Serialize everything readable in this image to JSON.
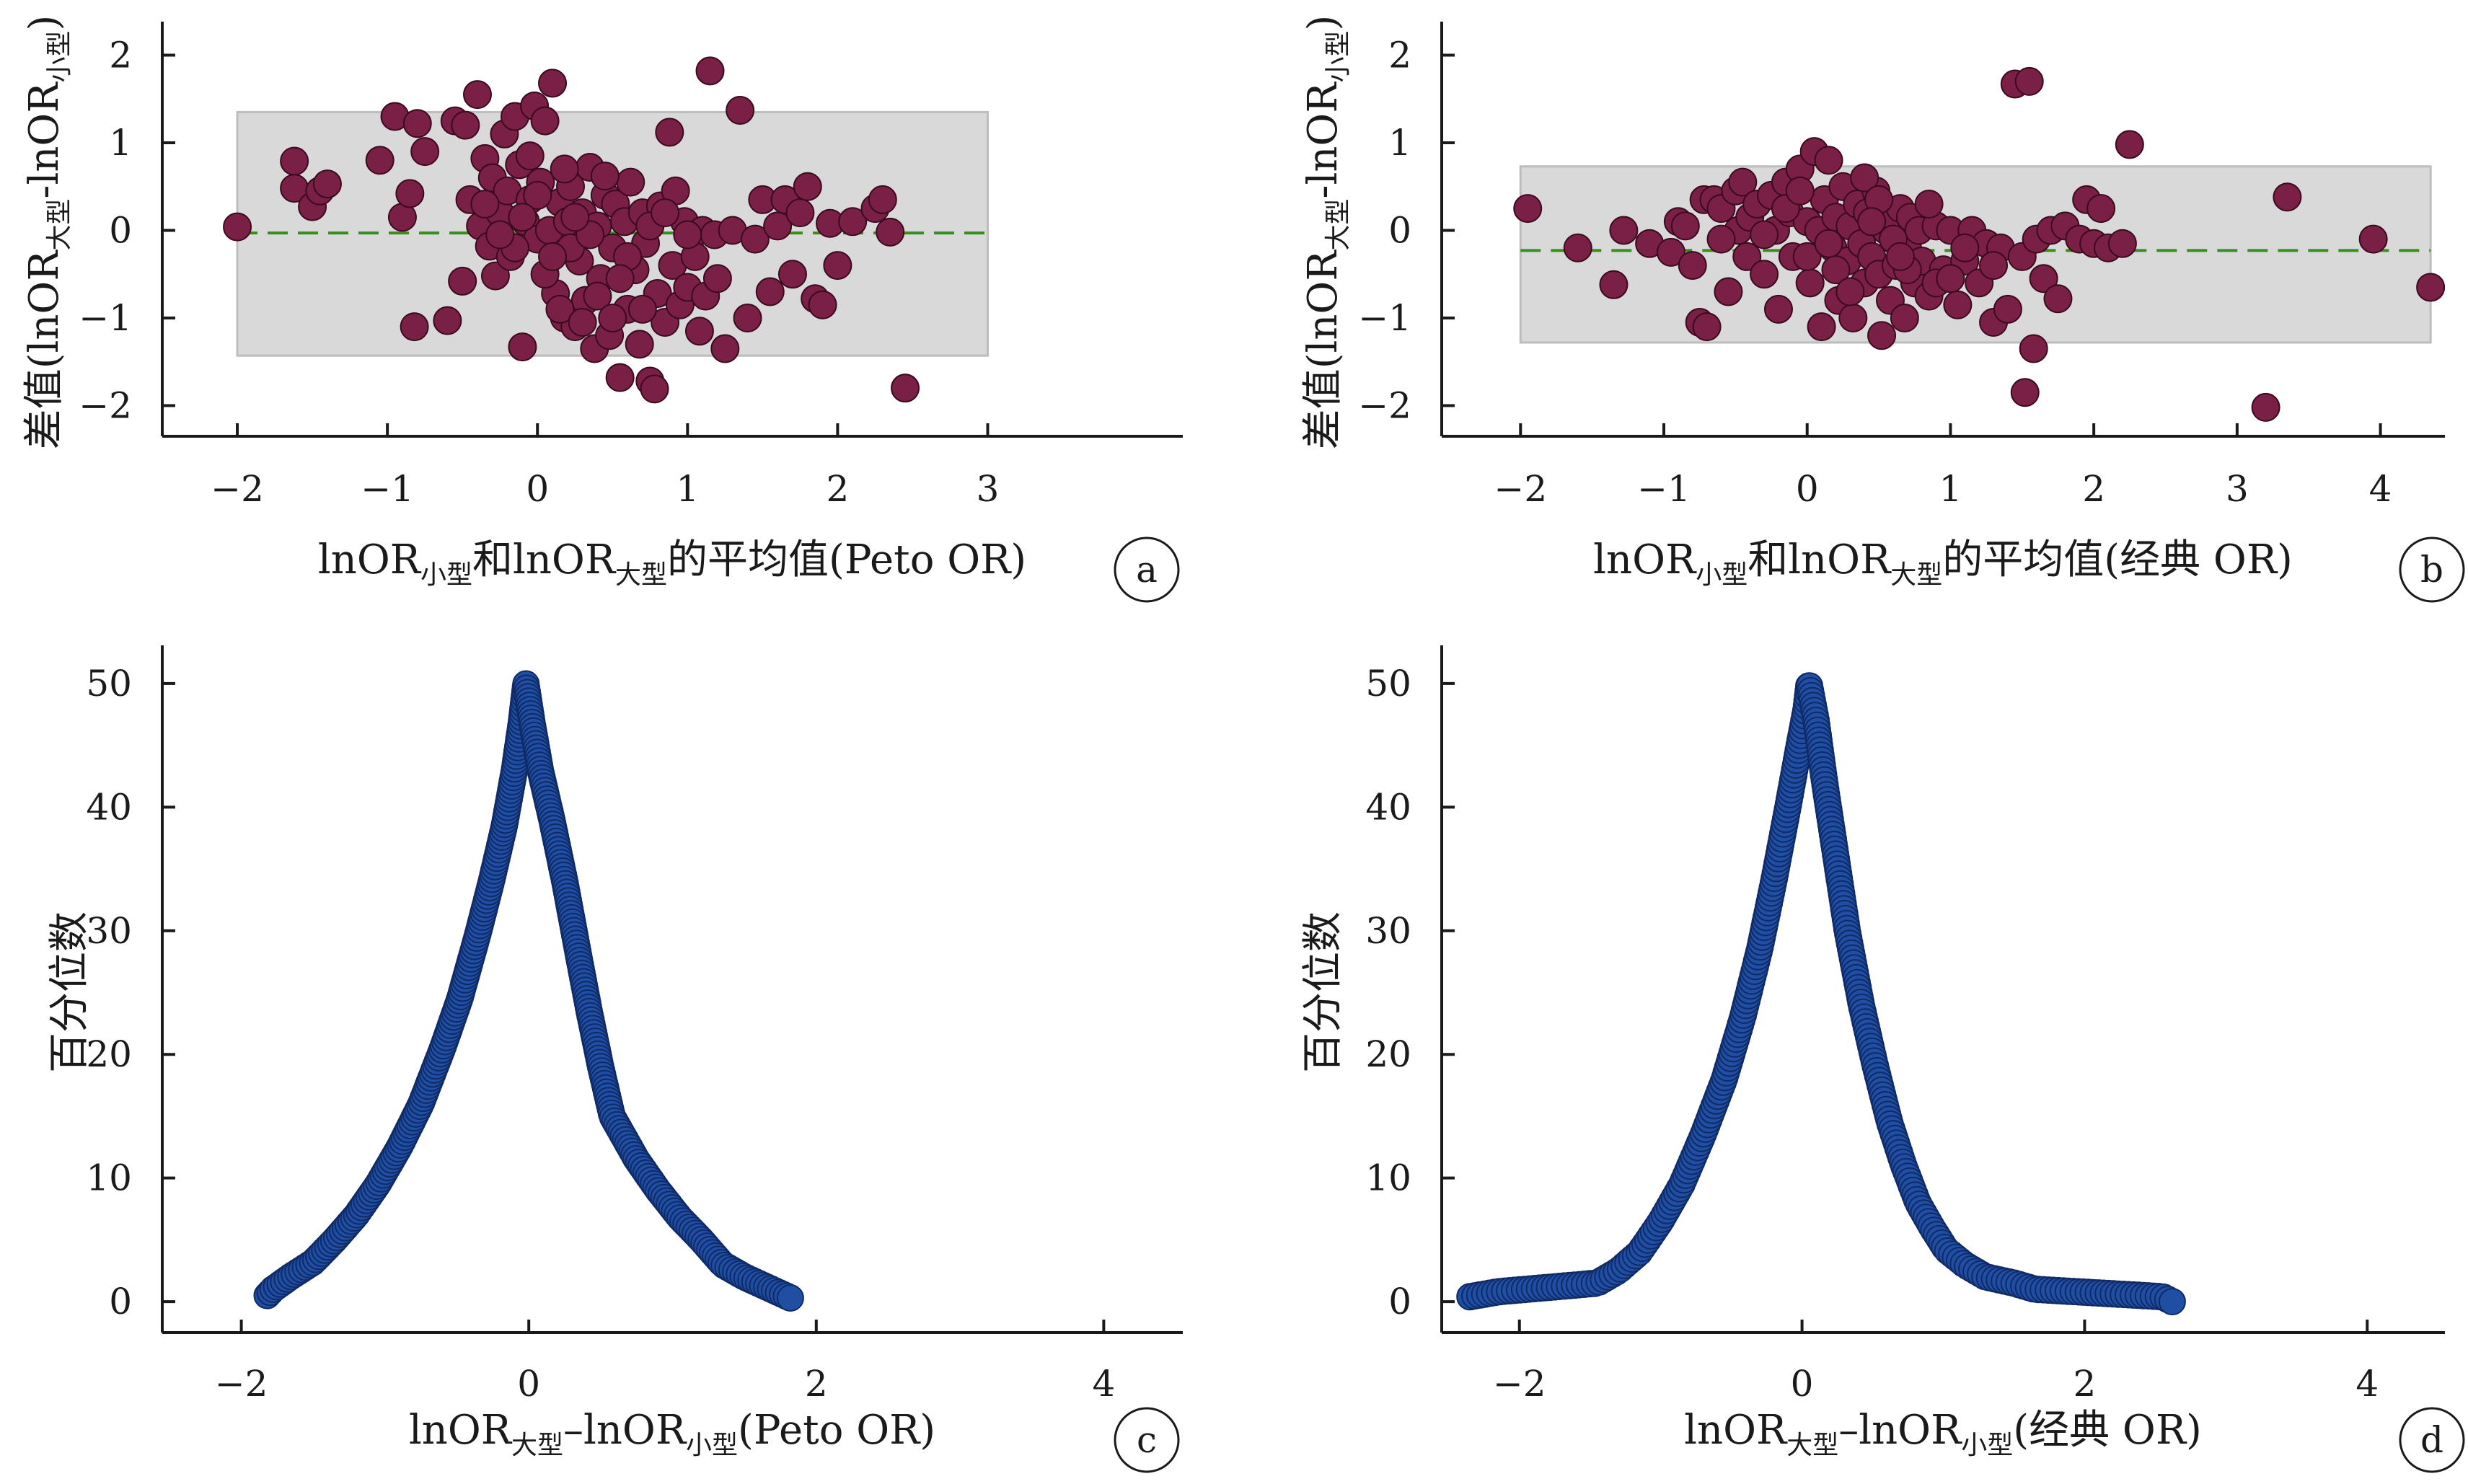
{
  "colors": {
    "bland_altman_point": "#7a1f45",
    "bland_altman_point_edge": "#3b0a1f",
    "agreement_band": "#d9d9d9",
    "agreement_band_edge": "#bdbdbd",
    "mean_line": "#3d8a1f",
    "percentile_point": "#1f4ea3",
    "percentile_point_edge": "#0f2a66",
    "percentile_line": "#1f3a8a",
    "axis": "#1a1a1a"
  },
  "chart_data": [
    {
      "id": "a",
      "type": "scatter",
      "panel_letter": "a",
      "xlabel": {
        "main": "lnOR",
        "sub1": "小型",
        "mid": "和lnOR",
        "sub2": "大型",
        "tail": "的平均值(Peto OR)"
      },
      "ylabel": {
        "main": "差值(lnOR",
        "sub1": "大型",
        "mid": "-lnOR",
        "sub2": "小型",
        "tail": ")"
      },
      "xlim": [
        -2.5,
        4.3
      ],
      "ylim": [
        -2.35,
        2.3
      ],
      "xticks": [
        -2,
        -1,
        0,
        1,
        2,
        3
      ],
      "yticks": [
        -2,
        -1,
        0,
        1,
        2
      ],
      "mean_difference": -0.03,
      "limits_of_agreement": [
        -1.43,
        1.35
      ],
      "band_x_range": [
        -2.0,
        3.0
      ],
      "points": [
        [
          -2.0,
          0.04
        ],
        [
          -1.62,
          0.79
        ],
        [
          -1.62,
          0.48
        ],
        [
          -1.5,
          0.27
        ],
        [
          -1.45,
          0.45
        ],
        [
          -1.4,
          0.53
        ],
        [
          -1.05,
          0.8
        ],
        [
          -0.95,
          1.3
        ],
        [
          -0.9,
          0.15
        ],
        [
          -0.85,
          0.42
        ],
        [
          -0.82,
          -1.1
        ],
        [
          -0.8,
          1.22
        ],
        [
          -0.75,
          0.9
        ],
        [
          -0.6,
          -1.03
        ],
        [
          -0.55,
          1.25
        ],
        [
          -0.5,
          -0.58
        ],
        [
          -0.48,
          1.2
        ],
        [
          -0.45,
          0.35
        ],
        [
          -0.4,
          1.55
        ],
        [
          -0.38,
          0.05
        ],
        [
          -0.35,
          0.82
        ],
        [
          -0.32,
          -0.18
        ],
        [
          -0.3,
          0.6
        ],
        [
          -0.28,
          -0.52
        ],
        [
          -0.25,
          0.2
        ],
        [
          -0.22,
          1.1
        ],
        [
          -0.2,
          0.45
        ],
        [
          -0.18,
          -0.3
        ],
        [
          -0.15,
          1.3
        ],
        [
          -0.12,
          0.75
        ],
        [
          -0.1,
          -1.33
        ],
        [
          -0.08,
          0.1
        ],
        [
          -0.05,
          0.35
        ],
        [
          -0.02,
          1.42
        ],
        [
          0.0,
          -0.1
        ],
        [
          0.02,
          0.55
        ],
        [
          0.05,
          1.25
        ],
        [
          0.08,
          0.0
        ],
        [
          0.1,
          1.68
        ],
        [
          0.12,
          -0.72
        ],
        [
          0.15,
          0.32
        ],
        [
          0.18,
          -1.0
        ],
        [
          0.2,
          0.1
        ],
        [
          0.22,
          0.5
        ],
        [
          0.25,
          -1.1
        ],
        [
          0.28,
          -0.35
        ],
        [
          0.3,
          0.2
        ],
        [
          0.32,
          -0.8
        ],
        [
          0.35,
          0.72
        ],
        [
          0.38,
          -1.35
        ],
        [
          0.4,
          0.05
        ],
        [
          0.42,
          -0.55
        ],
        [
          0.45,
          0.4
        ],
        [
          0.48,
          -1.2
        ],
        [
          0.5,
          -0.2
        ],
        [
          0.52,
          0.3
        ],
        [
          0.55,
          -1.68
        ],
        [
          0.58,
          0.1
        ],
        [
          0.6,
          -0.9
        ],
        [
          0.62,
          0.55
        ],
        [
          0.65,
          -0.45
        ],
        [
          0.68,
          -1.3
        ],
        [
          0.7,
          0.2
        ],
        [
          0.72,
          -0.15
        ],
        [
          0.75,
          -1.72
        ],
        [
          0.78,
          -1.81
        ],
        [
          0.8,
          -0.72
        ],
        [
          0.82,
          0.28
        ],
        [
          0.85,
          -1.05
        ],
        [
          0.88,
          1.12
        ],
        [
          0.9,
          -0.4
        ],
        [
          0.92,
          0.45
        ],
        [
          0.95,
          -0.85
        ],
        [
          0.98,
          0.1
        ],
        [
          1.0,
          -0.65
        ],
        [
          1.05,
          -0.3
        ],
        [
          1.08,
          -1.15
        ],
        [
          1.1,
          0.0
        ],
        [
          1.12,
          -0.75
        ],
        [
          1.15,
          1.82
        ],
        [
          1.18,
          -0.05
        ],
        [
          1.2,
          -0.55
        ],
        [
          1.25,
          -1.35
        ],
        [
          1.3,
          0.0
        ],
        [
          1.35,
          1.37
        ],
        [
          1.4,
          -1.0
        ],
        [
          1.45,
          -0.1
        ],
        [
          1.5,
          0.35
        ],
        [
          1.55,
          -0.7
        ],
        [
          1.6,
          0.05
        ],
        [
          1.65,
          0.35
        ],
        [
          1.7,
          -0.5
        ],
        [
          1.75,
          0.2
        ],
        [
          1.8,
          0.5
        ],
        [
          1.85,
          -0.78
        ],
        [
          1.9,
          -0.85
        ],
        [
          1.95,
          0.08
        ],
        [
          2.0,
          -0.4
        ],
        [
          2.1,
          0.1
        ],
        [
          2.25,
          0.25
        ],
        [
          2.3,
          0.35
        ],
        [
          2.35,
          -0.02
        ],
        [
          2.45,
          -1.8
        ],
        [
          -0.15,
          -0.2
        ],
        [
          0.05,
          -0.5
        ],
        [
          0.22,
          -0.2
        ],
        [
          0.35,
          -0.05
        ],
        [
          0.45,
          0.62
        ],
        [
          -0.05,
          0.85
        ],
        [
          0.15,
          -0.9
        ],
        [
          0.3,
          -1.05
        ],
        [
          0.6,
          -0.3
        ],
        [
          0.75,
          0.05
        ],
        [
          -0.25,
          -0.05
        ],
        [
          0.0,
          0.4
        ],
        [
          0.1,
          -0.3
        ],
        [
          0.25,
          0.15
        ],
        [
          0.4,
          -0.75
        ],
        [
          0.55,
          -0.55
        ],
        [
          0.7,
          -0.9
        ],
        [
          -0.35,
          0.3
        ],
        [
          -0.1,
          0.15
        ],
        [
          0.18,
          0.7
        ],
        [
          0.5,
          -1.0
        ],
        [
          0.85,
          0.2
        ],
        [
          1.0,
          -0.05
        ]
      ]
    },
    {
      "id": "b",
      "type": "scatter",
      "panel_letter": "b",
      "xlabel": {
        "main": "lnOR",
        "sub1": "小型",
        "mid": "和lnOR",
        "sub2": "大型",
        "tail": "的平均值(经典 OR)"
      },
      "ylabel": {
        "main": "差值(lnOR",
        "sub1": "大型",
        "mid": "-lnOR",
        "sub2": "小型",
        "tail": ")"
      },
      "xlim": [
        -2.55,
        4.45
      ],
      "ylim": [
        -2.35,
        2.3
      ],
      "xticks": [
        -2,
        -1,
        0,
        1,
        2,
        3,
        4
      ],
      "yticks": [
        -2,
        -1,
        0,
        1,
        2
      ],
      "mean_difference": -0.23,
      "limits_of_agreement": [
        -1.28,
        0.73
      ],
      "band_x_range": [
        -2.0,
        4.35
      ],
      "points": [
        [
          -1.95,
          0.25
        ],
        [
          -1.6,
          -0.2
        ],
        [
          -1.35,
          -0.62
        ],
        [
          -1.28,
          0.0
        ],
        [
          -1.1,
          -0.15
        ],
        [
          -0.95,
          -0.25
        ],
        [
          -0.9,
          0.1
        ],
        [
          -0.85,
          0.05
        ],
        [
          -0.8,
          -0.4
        ],
        [
          -0.75,
          -1.05
        ],
        [
          -0.72,
          0.35
        ],
        [
          -0.7,
          -1.1
        ],
        [
          -0.65,
          0.35
        ],
        [
          -0.6,
          0.25
        ],
        [
          -0.55,
          -0.7
        ],
        [
          -0.5,
          0.45
        ],
        [
          -0.48,
          0.0
        ],
        [
          -0.45,
          0.55
        ],
        [
          -0.42,
          -0.3
        ],
        [
          -0.4,
          0.15
        ],
        [
          -0.35,
          0.3
        ],
        [
          -0.3,
          -0.5
        ],
        [
          -0.25,
          0.4
        ],
        [
          -0.22,
          0.0
        ],
        [
          -0.2,
          -0.9
        ],
        [
          -0.15,
          0.55
        ],
        [
          -0.12,
          0.2
        ],
        [
          -0.1,
          -0.3
        ],
        [
          -0.05,
          0.7
        ],
        [
          0.0,
          0.1
        ],
        [
          0.02,
          -0.6
        ],
        [
          0.05,
          0.9
        ],
        [
          0.08,
          0.0
        ],
        [
          0.1,
          -1.1
        ],
        [
          0.12,
          0.35
        ],
        [
          0.15,
          0.8
        ],
        [
          0.18,
          -0.2
        ],
        [
          0.2,
          0.15
        ],
        [
          0.22,
          -0.8
        ],
        [
          0.25,
          0.5
        ],
        [
          0.28,
          -0.35
        ],
        [
          0.3,
          0.05
        ],
        [
          0.32,
          -1.0
        ],
        [
          0.35,
          0.3
        ],
        [
          0.38,
          -0.15
        ],
        [
          0.4,
          -0.6
        ],
        [
          0.42,
          0.2
        ],
        [
          0.45,
          -0.3
        ],
        [
          0.48,
          0.45
        ],
        [
          0.5,
          -0.5
        ],
        [
          0.52,
          -1.2
        ],
        [
          0.55,
          0.0
        ],
        [
          0.58,
          -0.8
        ],
        [
          0.6,
          0.1
        ],
        [
          0.62,
          -0.4
        ],
        [
          0.65,
          0.25
        ],
        [
          0.68,
          -1.0
        ],
        [
          0.7,
          -0.2
        ],
        [
          0.72,
          0.15
        ],
        [
          0.75,
          -0.6
        ],
        [
          0.78,
          0.0
        ],
        [
          0.8,
          -0.35
        ],
        [
          0.85,
          -0.75
        ],
        [
          0.9,
          0.05
        ],
        [
          0.95,
          -0.45
        ],
        [
          1.0,
          0.0
        ],
        [
          1.05,
          -0.85
        ],
        [
          1.1,
          -0.35
        ],
        [
          1.15,
          0.0
        ],
        [
          1.2,
          -0.6
        ],
        [
          1.25,
          -0.15
        ],
        [
          1.3,
          -1.05
        ],
        [
          1.35,
          -0.2
        ],
        [
          1.4,
          -0.9
        ],
        [
          1.45,
          1.67
        ],
        [
          1.5,
          -0.3
        ],
        [
          1.52,
          -1.85
        ],
        [
          1.55,
          1.7
        ],
        [
          1.58,
          -1.35
        ],
        [
          1.6,
          -0.1
        ],
        [
          1.65,
          -0.55
        ],
        [
          1.7,
          0.0
        ],
        [
          1.75,
          -0.78
        ],
        [
          1.8,
          0.05
        ],
        [
          1.9,
          -0.1
        ],
        [
          1.95,
          0.35
        ],
        [
          2.0,
          -0.15
        ],
        [
          2.05,
          0.25
        ],
        [
          2.1,
          -0.2
        ],
        [
          2.2,
          -0.15
        ],
        [
          2.25,
          0.98
        ],
        [
          3.2,
          -2.02
        ],
        [
          3.35,
          0.38
        ],
        [
          3.95,
          -0.1
        ],
        [
          4.35,
          -0.65
        ],
        [
          -0.3,
          -0.05
        ],
        [
          0.2,
          -0.45
        ],
        [
          0.4,
          0.6
        ],
        [
          0.6,
          -0.1
        ],
        [
          0.0,
          -0.3
        ],
        [
          -0.15,
          0.25
        ],
        [
          0.3,
          -0.7
        ],
        [
          0.5,
          0.35
        ],
        [
          0.7,
          -0.45
        ],
        [
          0.9,
          -0.6
        ],
        [
          1.1,
          -0.2
        ],
        [
          1.3,
          -0.4
        ],
        [
          -0.6,
          -0.1
        ],
        [
          -0.05,
          0.45
        ],
        [
          0.15,
          -0.15
        ],
        [
          0.45,
          0.1
        ],
        [
          0.65,
          -0.3
        ],
        [
          0.85,
          0.3
        ],
        [
          1.0,
          -0.55
        ]
      ]
    },
    {
      "id": "c",
      "type": "line",
      "panel_letter": "c",
      "xlabel": {
        "main": "lnOR",
        "sub1": "大型",
        "mid": "–lnOR",
        "sub2": "小型",
        "tail": "(Peto OR)"
      },
      "ylabel": {
        "main": "百分位数",
        "sub1": "",
        "mid": "",
        "sub2": "",
        "tail": ""
      },
      "xlim": [
        -2.55,
        4.55
      ],
      "ylim": [
        -2.5,
        52.5
      ],
      "xticks": [
        -2,
        0,
        2,
        4
      ],
      "yticks": [
        0,
        10,
        20,
        30,
        40,
        50
      ],
      "curve": [
        [
          -1.82,
          0.5
        ],
        [
          -1.78,
          1.0
        ],
        [
          -1.66,
          2.0
        ],
        [
          -1.5,
          3.2
        ],
        [
          -1.35,
          5.0
        ],
        [
          -1.2,
          7.0
        ],
        [
          -1.05,
          9.5
        ],
        [
          -0.9,
          12.5
        ],
        [
          -0.75,
          16.0
        ],
        [
          -0.6,
          20.5
        ],
        [
          -0.48,
          24.5
        ],
        [
          -0.36,
          29.5
        ],
        [
          -0.26,
          34.0
        ],
        [
          -0.17,
          38.5
        ],
        [
          -0.1,
          43.0
        ],
        [
          -0.05,
          47.0
        ],
        [
          -0.02,
          50.0
        ],
        [
          0.02,
          47.0
        ],
        [
          0.08,
          43.0
        ],
        [
          0.16,
          39.0
        ],
        [
          0.25,
          34.0
        ],
        [
          0.33,
          29.0
        ],
        [
          0.42,
          23.5
        ],
        [
          0.5,
          19.0
        ],
        [
          0.58,
          15.0
        ],
        [
          0.75,
          11.5
        ],
        [
          0.9,
          9.0
        ],
        [
          1.05,
          6.8
        ],
        [
          1.2,
          5.0
        ],
        [
          1.35,
          3.0
        ],
        [
          1.5,
          2.0
        ],
        [
          1.65,
          1.2
        ],
        [
          1.82,
          0.3
        ]
      ],
      "marker_count": 320
    },
    {
      "id": "d",
      "type": "line",
      "panel_letter": "d",
      "xlabel": {
        "main": "lnOR",
        "sub1": "大型",
        "mid": "–lnOR",
        "sub2": "小型",
        "tail": "(经典 OR)"
      },
      "ylabel": {
        "main": "百分位数",
        "sub1": "",
        "mid": "",
        "sub2": "",
        "tail": ""
      },
      "xlim": [
        -2.55,
        4.55
      ],
      "ylim": [
        -2.5,
        52.5
      ],
      "xticks": [
        -2,
        0,
        2,
        4
      ],
      "yticks": [
        0,
        10,
        20,
        30,
        40,
        50
      ],
      "curve": [
        [
          -2.35,
          0.4
        ],
        [
          -2.15,
          0.8
        ],
        [
          -1.45,
          1.5
        ],
        [
          -1.3,
          2.5
        ],
        [
          -1.15,
          4.0
        ],
        [
          -1.0,
          6.5
        ],
        [
          -0.85,
          9.5
        ],
        [
          -0.7,
          13.5
        ],
        [
          -0.55,
          18.0
        ],
        [
          -0.42,
          23.0
        ],
        [
          -0.3,
          28.5
        ],
        [
          -0.2,
          34.0
        ],
        [
          -0.1,
          40.0
        ],
        [
          -0.02,
          45.0
        ],
        [
          0.03,
          48.0
        ],
        [
          0.05,
          50.0
        ],
        [
          0.1,
          47.0
        ],
        [
          0.16,
          42.0
        ],
        [
          0.24,
          36.0
        ],
        [
          0.32,
          30.0
        ],
        [
          0.42,
          24.0
        ],
        [
          0.52,
          19.0
        ],
        [
          0.62,
          14.5
        ],
        [
          0.72,
          11.0
        ],
        [
          0.82,
          8.0
        ],
        [
          0.92,
          6.0
        ],
        [
          1.02,
          4.2
        ],
        [
          1.15,
          3.0
        ],
        [
          1.3,
          2.0
        ],
        [
          1.5,
          1.5
        ],
        [
          1.65,
          1.0
        ],
        [
          2.55,
          0.4
        ],
        [
          2.62,
          0.0
        ]
      ],
      "marker_count": 320
    }
  ]
}
